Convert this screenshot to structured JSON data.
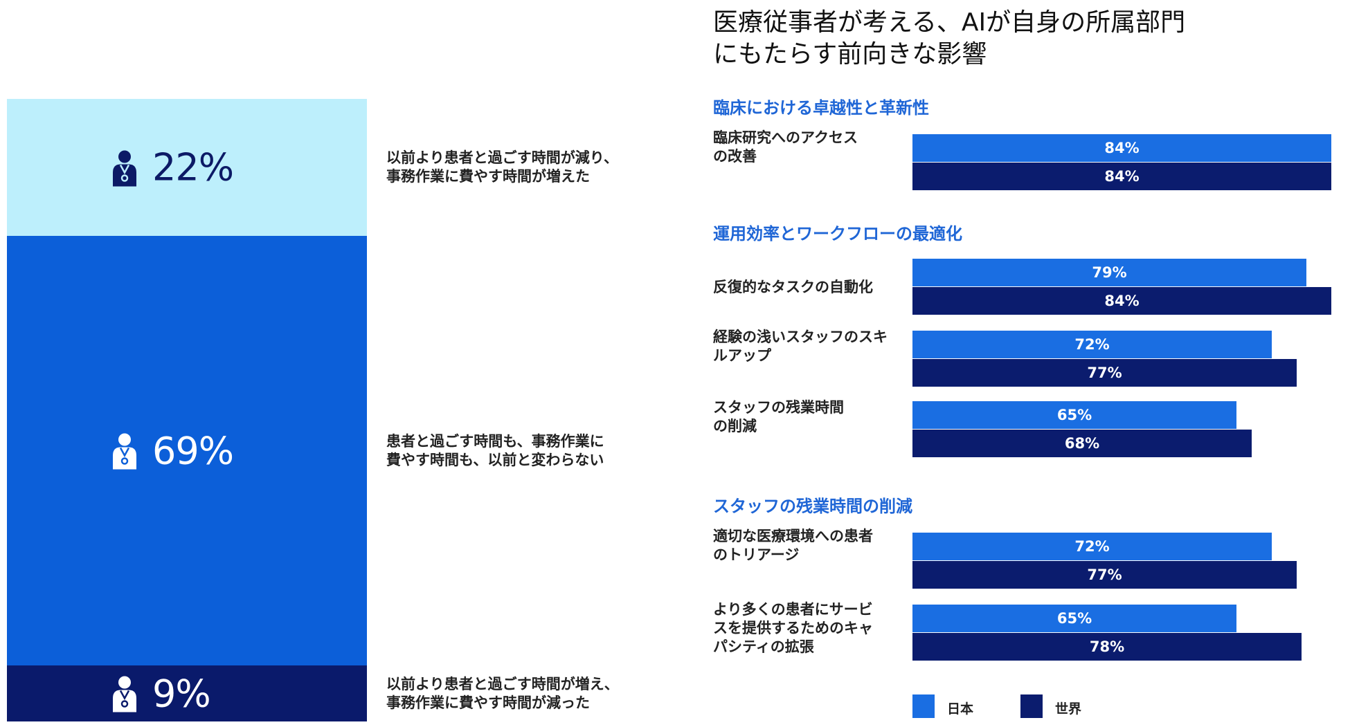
{
  "colors": {
    "light": "#bdeffc",
    "mid": "#0c5fd9",
    "dark": "#0a1a6b",
    "japan": "#1a6ee2",
    "world": "#0b1c6e",
    "section": "#1f66d6"
  },
  "left_panel": {
    "segments": [
      {
        "icon": "person-icon",
        "percent": "22%",
        "value": 22,
        "color_key": "light",
        "text_color": "#0c1a66",
        "description": "以前より患者と過ごす時間が減り、\n事務作業に費やす時間が増えた"
      },
      {
        "icon": "person-icon",
        "percent": "69%",
        "value": 69,
        "color_key": "mid",
        "text_color": "#ffffff",
        "description": "患者と過ごす時間も、事務作業に\n費やす時間も、以前と変わらない"
      },
      {
        "icon": "person-icon",
        "percent": "9%",
        "value": 9,
        "color_key": "dark",
        "text_color": "#ffffff",
        "description": "以前より患者と過ごす時間が増え、\n事務作業に費やす時間が減った"
      }
    ]
  },
  "chart_data": {
    "type": "bar",
    "orientation": "horizontal",
    "title": "医療従事者が考える、AIが自身の所属部門\nにもたらす前向きな影響",
    "xlim": [
      0,
      100
    ],
    "legend": {
      "placement": "bottom-left",
      "entries": [
        "日本",
        "世界"
      ]
    },
    "series_names": [
      "日本",
      "世界"
    ],
    "groups": [
      {
        "title": "臨床における卓越性と革新性",
        "categories": [
          {
            "label": "臨床研究へのアクセス\nの改善",
            "values": [
              84,
              84
            ],
            "labels": [
              "84%",
              "84%"
            ]
          }
        ]
      },
      {
        "title": "運用効率とワークフローの最適化",
        "categories": [
          {
            "label": "反復的なタスクの自動化",
            "values": [
              79,
              84
            ],
            "labels": [
              "79%",
              "84%"
            ]
          },
          {
            "label": "経験の浅いスタッフのスキ\nルアップ",
            "values": [
              72,
              77
            ],
            "labels": [
              "72%",
              "77%"
            ]
          },
          {
            "label": "スタッフの残業時間\nの削減",
            "values": [
              65,
              68
            ],
            "labels": [
              "65%",
              "68%"
            ]
          }
        ]
      },
      {
        "title": "スタッフの残業時間の削減",
        "categories": [
          {
            "label": "適切な医療環境への患者\nのトリアージ",
            "values": [
              72,
              77
            ],
            "labels": [
              "72%",
              "77%"
            ]
          },
          {
            "label": "より多くの患者にサービ\nスを提供するためのキャ\nパシティの拡張",
            "values": [
              65,
              78
            ],
            "labels": [
              "65%",
              "78%"
            ]
          }
        ]
      }
    ]
  }
}
